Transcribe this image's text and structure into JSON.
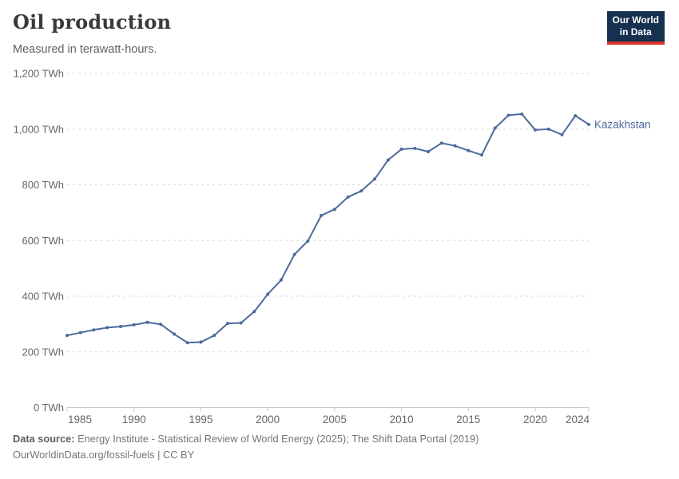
{
  "header": {
    "title": "Oil production",
    "subtitle": "Measured in terawatt-hours."
  },
  "logo": {
    "line1": "Our World",
    "line2": "in Data",
    "bg_color": "#16304F",
    "accent_color": "#D7382D"
  },
  "chart_data": {
    "type": "line",
    "title": "Oil production",
    "subtitle": "Measured in terawatt-hours.",
    "unit": "TWh",
    "xlim": [
      1985,
      2024
    ],
    "ylim": [
      0,
      1200
    ],
    "x_ticks": [
      1985,
      1990,
      1995,
      2000,
      2005,
      2010,
      2015,
      2020,
      2024
    ],
    "y_ticks": [
      0,
      200,
      400,
      600,
      800,
      1000,
      1200
    ],
    "y_tick_labels": [
      "0 TWh",
      "200 TWh",
      "400 TWh",
      "600 TWh",
      "800 TWh",
      "1,000 TWh",
      "1,200 TWh"
    ],
    "grid": "horizontal-dashed",
    "legend_position": "end-of-line-label",
    "series": [
      {
        "name": "Kazakhstan",
        "color": "#4C6A9C",
        "x": [
          1985,
          1986,
          1987,
          1988,
          1989,
          1990,
          1991,
          1992,
          1993,
          1994,
          1995,
          1996,
          1997,
          1998,
          1999,
          2000,
          2001,
          2002,
          2003,
          2004,
          2005,
          2006,
          2007,
          2008,
          2009,
          2010,
          2011,
          2012,
          2013,
          2014,
          2015,
          2016,
          2017,
          2018,
          2019,
          2020,
          2021,
          2022,
          2023,
          2024
        ],
        "values": [
          259,
          269,
          279,
          287,
          291,
          297,
          306,
          299,
          264,
          233,
          235,
          259,
          302,
          304,
          345,
          407,
          458,
          550,
          598,
          690,
          712,
          756,
          778,
          821,
          889,
          928,
          931,
          919,
          950,
          940,
          923,
          907,
          1004,
          1050,
          1054,
          997,
          1000,
          980,
          1048,
          1017
        ]
      }
    ]
  },
  "footer": {
    "source_label": "Data source:",
    "source_text": "Energy Institute - Statistical Review of World Energy (2025); The Shift Data Portal (2019)",
    "license": "OurWorldinData.org/fossil-fuels | CC BY"
  },
  "colors": {
    "title": "#3A3A3A",
    "subtitle": "#616161",
    "grid": "#DBDBDB",
    "axis": "#C9C9C9",
    "tick_label": "#666666",
    "footer": "#757575"
  }
}
